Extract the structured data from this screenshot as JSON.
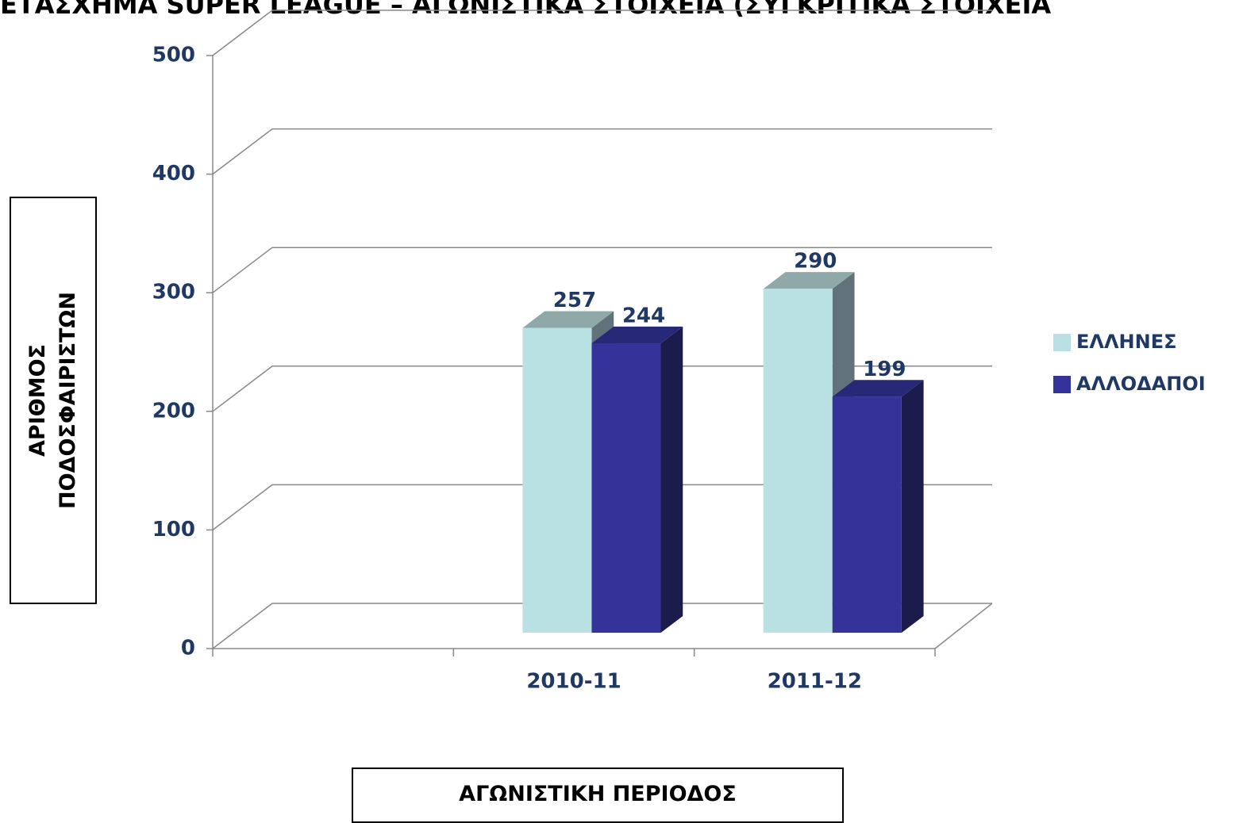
{
  "chart_data": {
    "type": "bar3d",
    "title": "ΕΤΑΣΧΗΜΑ SUPER LEAGUE – ΑΓΩΝΙΣΤΙΚΑ ΣΤΟΙΧΕΙΑ (ΣΥΓΚΡΙΤΙΚΑ ΣΤΟΙΧΕΙΑ",
    "y_axis_label": "ΑΡΙΘΜΟΣ ΠΟΔΟΣΦΑΙΡΙΣΤΩΝ",
    "x_axis_label": "ΑΓΩΝΙΣΤΙΚΗ ΠΕΡΙΟΔΟΣ",
    "categories": [
      null,
      "2010-11",
      "2011-12"
    ],
    "series": [
      {
        "name": "ΕΛΛΗΝΕΣ",
        "color": "#b9e0e3",
        "values": [
          null,
          257,
          290
        ]
      },
      {
        "name": "ΑΛΛΟΔΑΠΟΙ",
        "color": "#333399",
        "values": [
          null,
          244,
          199
        ]
      }
    ],
    "ylim": [
      0,
      500
    ],
    "yticks": [
      0,
      100,
      200,
      300,
      400,
      500
    ],
    "grid": true,
    "legend": "right"
  }
}
